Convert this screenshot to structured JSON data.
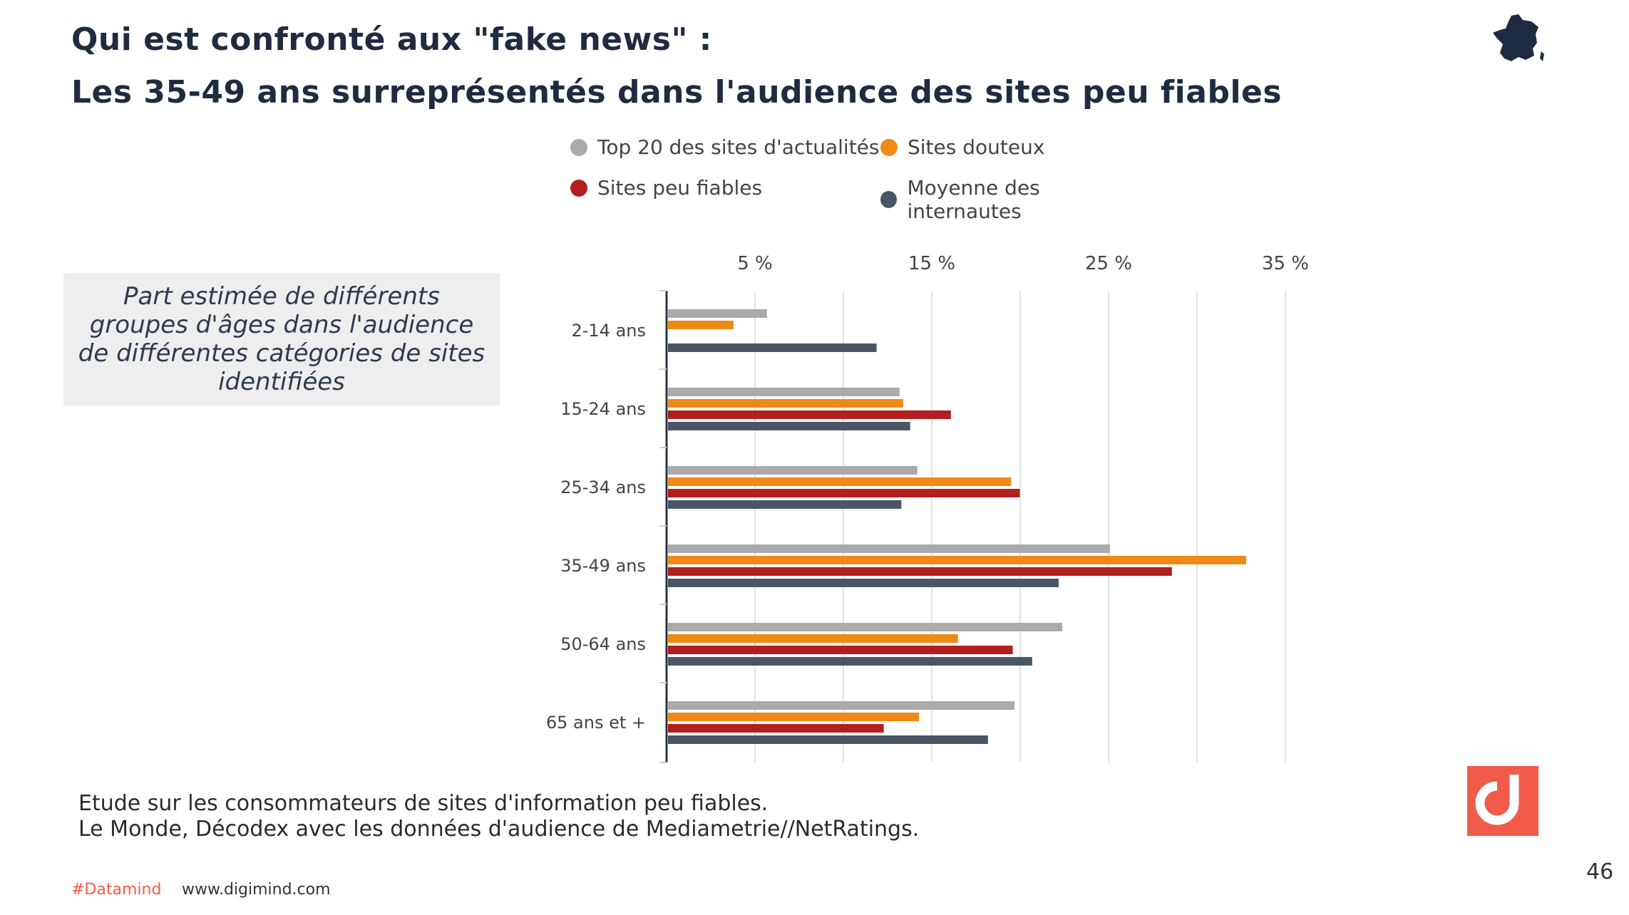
{
  "header": {
    "title_line1": "Qui est confronté aux \"fake news\" :",
    "title_line2": "Les 35-49 ans surreprésentés dans l'audience des sites peu fiables"
  },
  "description": "Part estimée  de différents groupes d'âges dans l'audience de différentes catégories de sites identifiées",
  "source": {
    "line1": "Etude sur les consommateurs de sites d'information peu fiables.",
    "line2": "Le Monde, Décodex avec les données d'audience de Mediametrie//NetRatings."
  },
  "footer": {
    "hashtag": "#Datamind",
    "url": "www.digimind.com",
    "page_number": "46"
  },
  "icons": {
    "country": "france-map-icon",
    "logo": "digimind-logo-icon"
  },
  "colors": {
    "title": "#1f2b40",
    "accent": "#f25a49",
    "grid": "#e2e2e2",
    "axis": "#2b3544"
  },
  "chart_data": {
    "type": "bar",
    "orientation": "horizontal",
    "categories": [
      "2-14 ans",
      "15-24 ans",
      "25-34 ans",
      "35-49 ans",
      "50-64 ans",
      "65 ans et +"
    ],
    "series": [
      {
        "name": "Top 20 des sites d'actualités",
        "color": "#aaaaaa",
        "values": [
          5.6,
          13.1,
          14.1,
          25.0,
          22.3,
          19.6
        ]
      },
      {
        "name": "Sites douteux",
        "color": "#ef8a17",
        "values": [
          3.7,
          13.3,
          19.4,
          32.7,
          16.4,
          14.2
        ]
      },
      {
        "name": "Sites peu fiables",
        "color": "#b31e1e",
        "values": [
          null,
          16.0,
          19.9,
          28.5,
          19.5,
          12.2
        ]
      },
      {
        "name": "Moyenne des internautes",
        "color": "#4a5666",
        "values": [
          11.8,
          13.7,
          13.2,
          22.1,
          20.6,
          18.1
        ]
      }
    ],
    "tick_values": [
      5,
      15,
      25,
      35
    ],
    "tick_labels": [
      "5 %",
      "15 %",
      "25 %",
      "35 %"
    ],
    "gridlines": [
      5,
      10,
      15,
      20,
      25,
      30,
      35
    ],
    "xlim": [
      0,
      35
    ],
    "grid": true,
    "legend_position": "top"
  }
}
